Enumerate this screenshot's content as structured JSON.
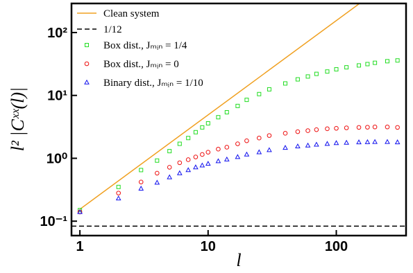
{
  "chart_data": {
    "type": "scatter",
    "xscale": "log",
    "yscale": "log",
    "xlabel": "l",
    "ylabel": "l² |Cˣˣ(l)|",
    "xlim": [
      0.86,
      350
    ],
    "ylim": [
      0.059,
      290
    ],
    "xticks": [
      1,
      10,
      100
    ],
    "yticks": [
      {
        "value": 0.1,
        "label": "10⁻¹"
      },
      {
        "value": 1,
        "label": "10⁰"
      },
      {
        "value": 10,
        "label": "10¹"
      },
      {
        "value": 100,
        "label": "10²"
      }
    ],
    "legend": "upper left",
    "x": [
      1,
      2,
      3,
      4,
      5,
      6,
      7,
      8,
      9,
      10,
      12,
      14,
      17,
      20,
      25,
      30,
      40,
      50,
      60,
      70,
      85,
      100,
      120,
      150,
      175,
      200,
      250,
      300
    ],
    "series": [
      {
        "name": "Clean system",
        "kind": "line",
        "dash": false,
        "color": "#f0a020",
        "x": [
          1,
          300
        ],
        "values": [
          0.155,
          805
        ]
      },
      {
        "name": "1/12",
        "kind": "hline",
        "dash": true,
        "color": "#000000",
        "y": 0.0833
      },
      {
        "name": "Box dist., Jₘᵢₙ = 1/4",
        "kind": "scatter",
        "marker": "square",
        "color": "#22dd22",
        "values": [
          0.15,
          0.35,
          0.65,
          0.92,
          1.3,
          1.7,
          2.1,
          2.6,
          3.1,
          3.6,
          4.5,
          5.4,
          6.8,
          8.5,
          10.5,
          12.5,
          15.5,
          18,
          20,
          22,
          24,
          26,
          28,
          30,
          31.5,
          33,
          35,
          36
        ]
      },
      {
        "name": "Box dist., Jₘᵢₙ = 0",
        "kind": "scatter",
        "marker": "circle",
        "color": "#ee1111",
        "values": [
          0.14,
          0.28,
          0.42,
          0.58,
          0.72,
          0.85,
          0.95,
          1.05,
          1.15,
          1.25,
          1.4,
          1.5,
          1.7,
          1.9,
          2.1,
          2.3,
          2.5,
          2.65,
          2.75,
          2.85,
          2.95,
          3.0,
          3.05,
          3.1,
          3.12,
          3.15,
          3.15,
          3.1
        ]
      },
      {
        "name": "Binary dist., Jₘᵢₙ = 1/10",
        "kind": "scatter",
        "marker": "triangle",
        "color": "#1111ee",
        "values": [
          0.14,
          0.23,
          0.33,
          0.41,
          0.5,
          0.58,
          0.65,
          0.72,
          0.77,
          0.82,
          0.9,
          0.96,
          1.05,
          1.15,
          1.25,
          1.35,
          1.47,
          1.55,
          1.6,
          1.65,
          1.7,
          1.75,
          1.77,
          1.8,
          1.81,
          1.82,
          1.82,
          1.8
        ]
      }
    ]
  }
}
